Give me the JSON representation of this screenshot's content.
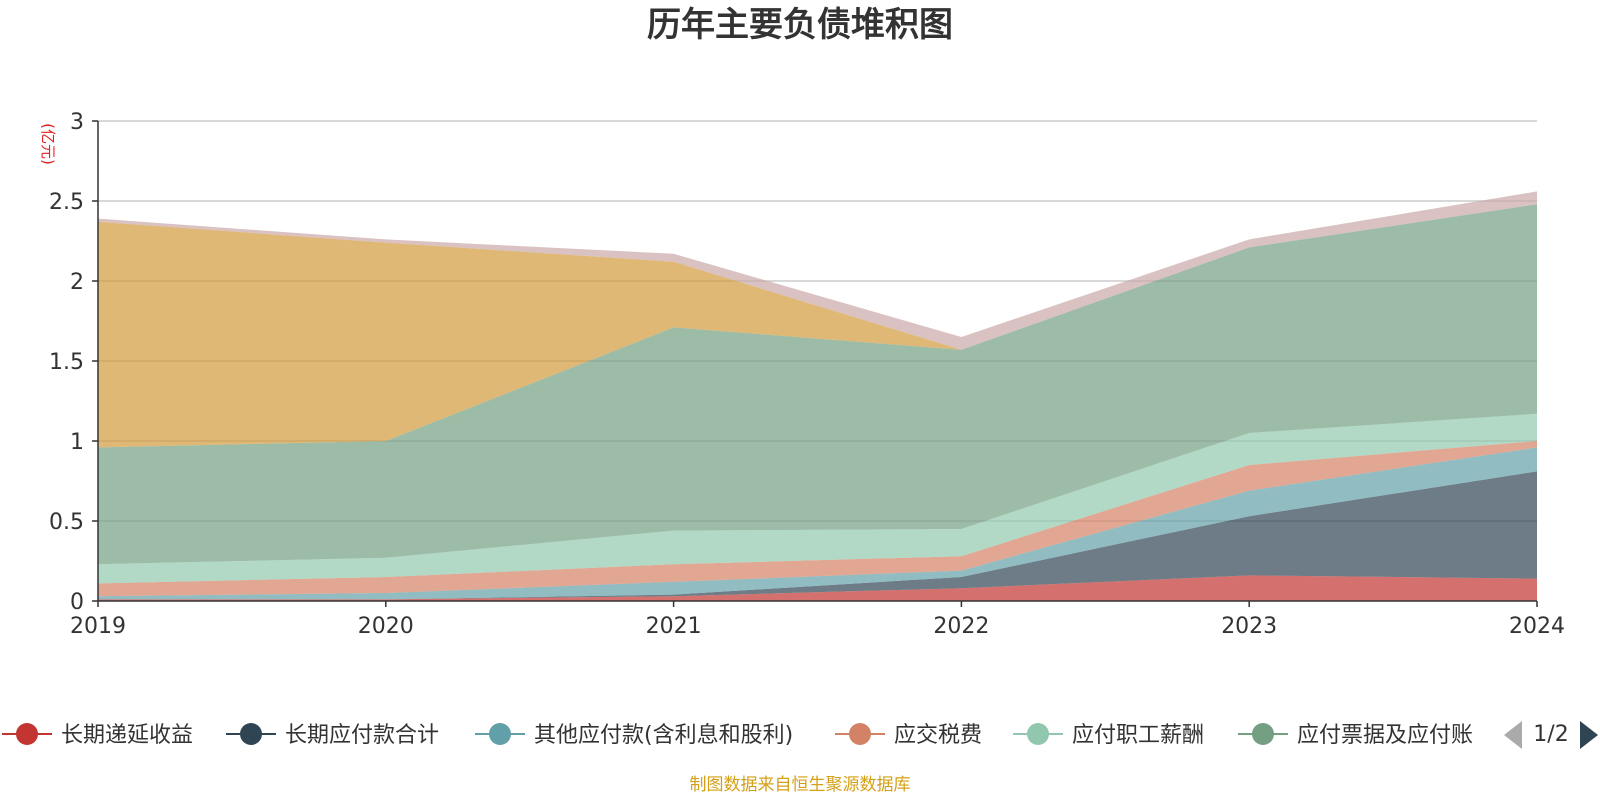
{
  "chart_data": {
    "type": "area",
    "stacked": true,
    "title": "历年主要负债堆积图",
    "y_unit": "(亿元)",
    "x": [
      "2019",
      "2020",
      "2021",
      "2022",
      "2023",
      "2024"
    ],
    "ylim": [
      0,
      3
    ],
    "yticks": [
      "0",
      "0.5",
      "1",
      "1.5",
      "2",
      "2.5",
      "3"
    ],
    "grid": true,
    "legend_position": "bottom",
    "series": [
      {
        "name": "长期递延收益",
        "color": "#c23531",
        "values": [
          0.01,
          0.01,
          0.03,
          0.08,
          0.16,
          0.14
        ]
      },
      {
        "name": "长期应付款合计",
        "color": "#2f4554",
        "values": [
          0.0,
          0.0,
          0.01,
          0.07,
          0.37,
          0.67
        ]
      },
      {
        "name": "其他应付款(含利息和股利)",
        "color": "#61a0a8",
        "values": [
          0.02,
          0.04,
          0.08,
          0.04,
          0.16,
          0.15
        ]
      },
      {
        "name": "应交税费",
        "color": "#d48265",
        "values": [
          0.08,
          0.1,
          0.11,
          0.09,
          0.16,
          0.04
        ]
      },
      {
        "name": "应付职工薪酬",
        "color": "#91c7ae",
        "values": [
          0.12,
          0.12,
          0.21,
          0.17,
          0.2,
          0.17
        ]
      },
      {
        "name": "应付票据及应付账款",
        "color": "#749f83",
        "values": [
          0.73,
          0.73,
          1.27,
          1.12,
          1.16,
          1.31
        ]
      },
      {
        "name": "",
        "color": "#d19a3a",
        "values": [
          1.41,
          1.24,
          0.41,
          0.0,
          0.0,
          0.0
        ]
      },
      {
        "name": "",
        "color": "#c9a8a6",
        "values": [
          0.02,
          0.02,
          0.05,
          0.08,
          0.05,
          0.08
        ]
      }
    ]
  },
  "legend": {
    "visible_items": [
      "长期递延收益",
      "长期应付款合计",
      "其他应付款(含利息和股利)",
      "应交税费",
      "应付职工薪酬",
      "应付票据及应付账"
    ],
    "page": "1/2"
  },
  "source": "制图数据来自恒生聚源数据库"
}
